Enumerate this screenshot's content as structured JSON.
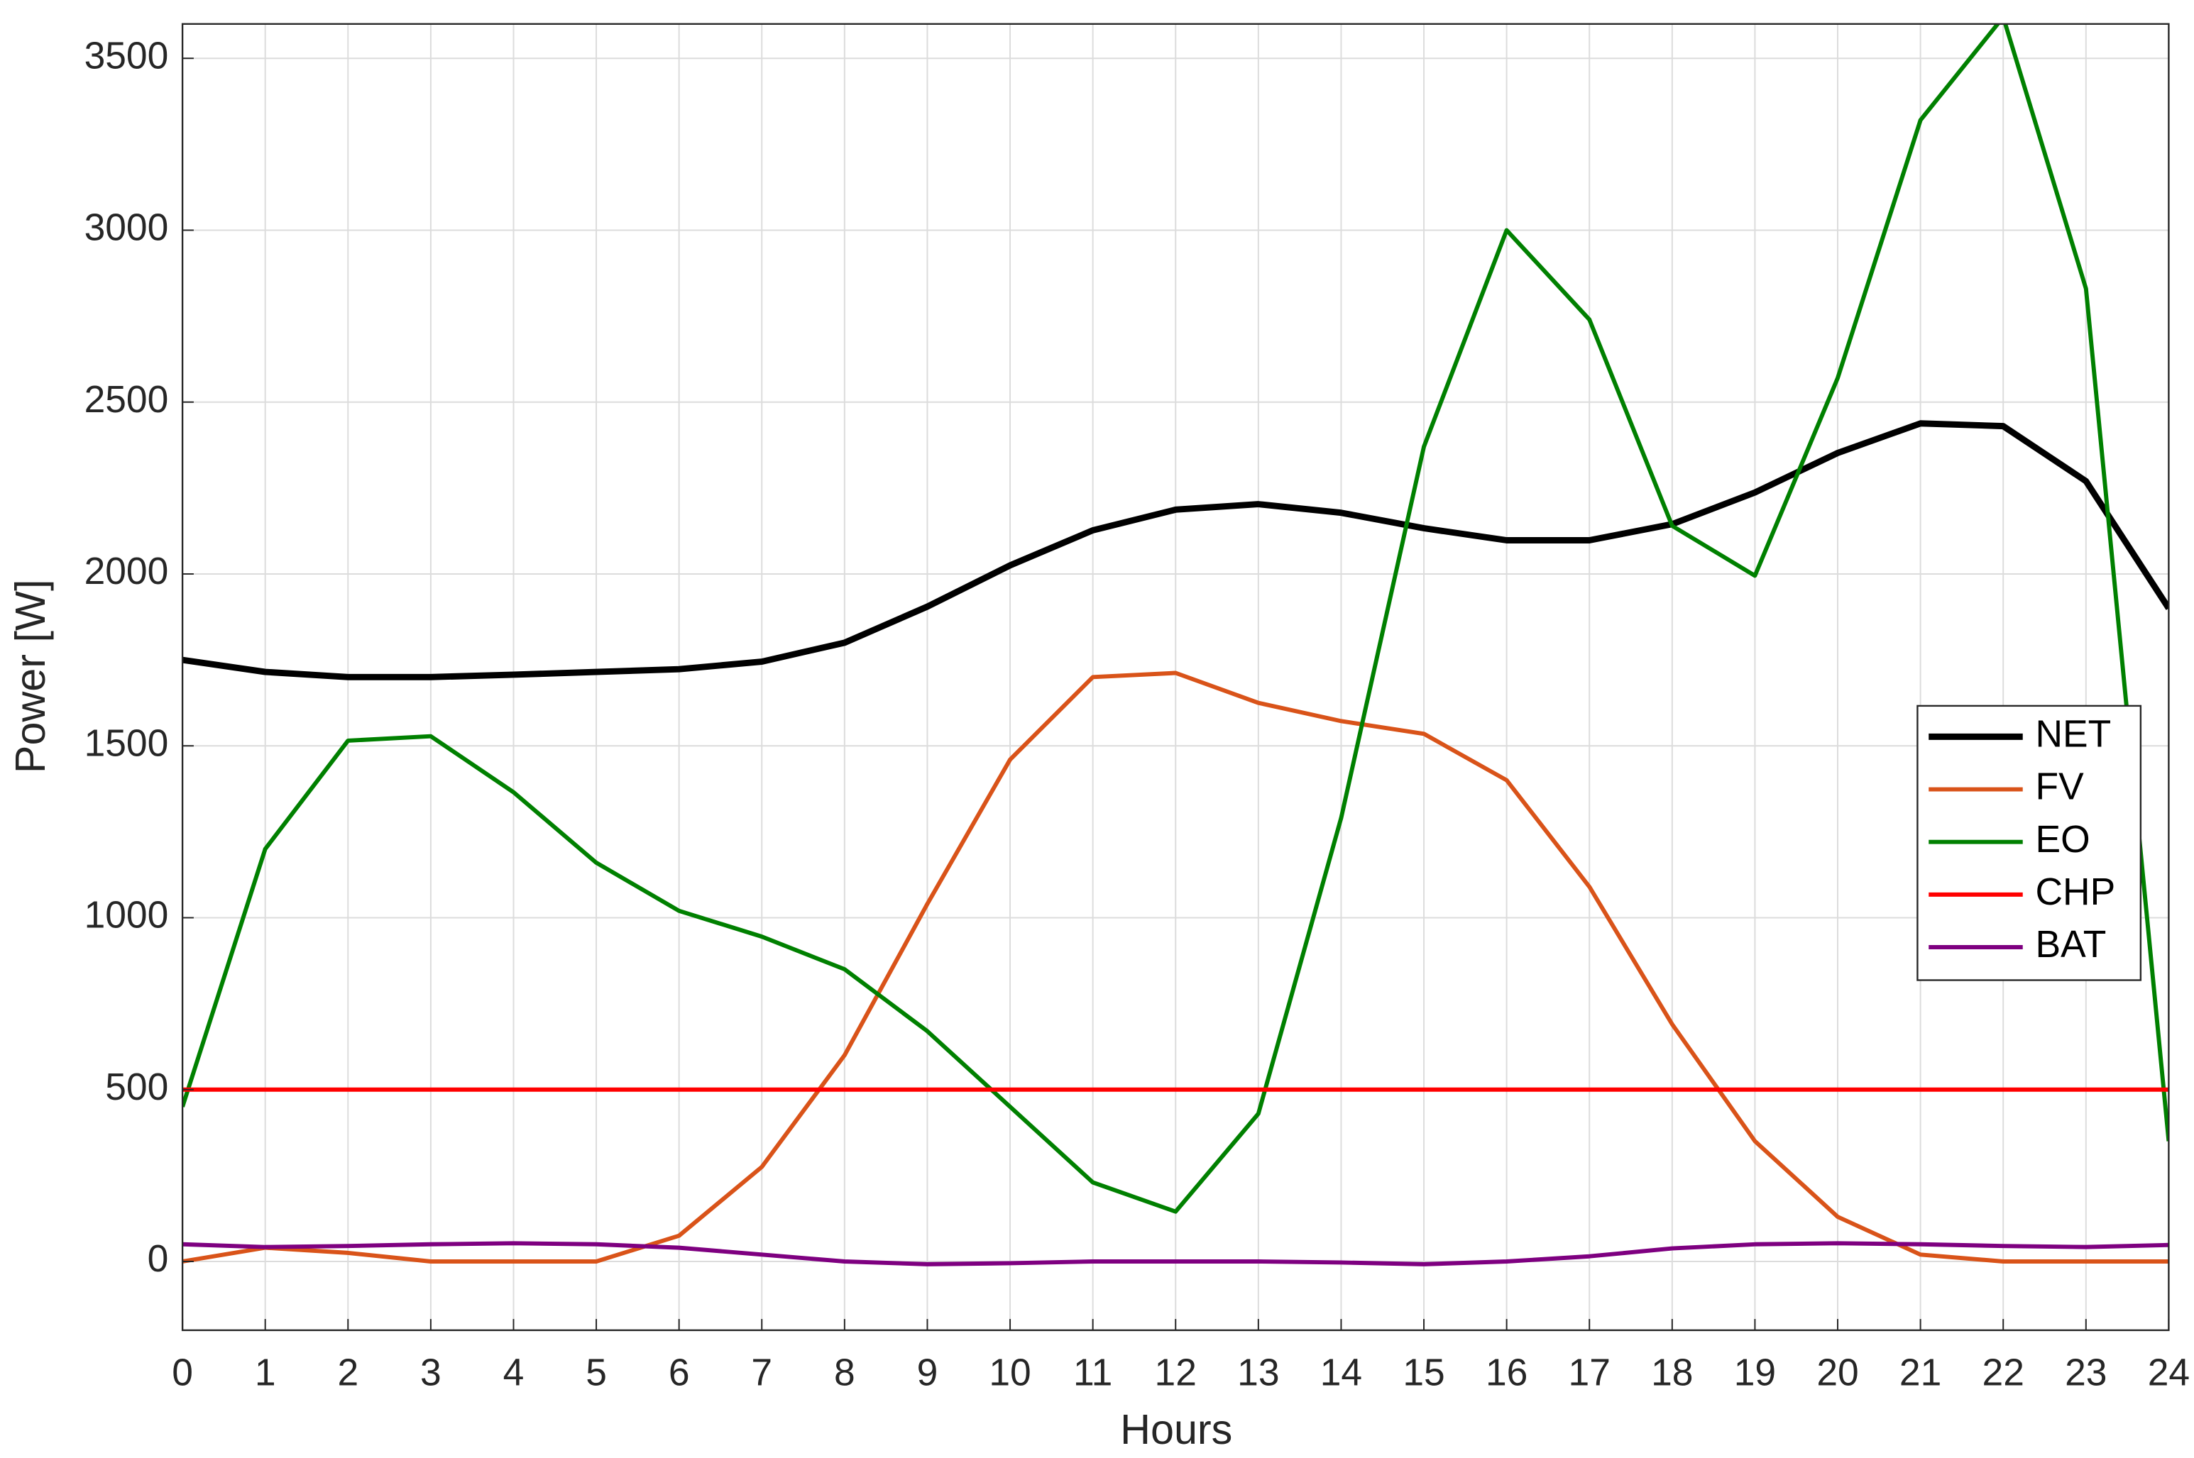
{
  "chart_data": {
    "type": "line",
    "xlabel": "Hours",
    "ylabel": "Power [W]",
    "x": [
      0,
      1,
      2,
      3,
      4,
      5,
      6,
      7,
      8,
      9,
      10,
      11,
      12,
      13,
      14,
      15,
      16,
      17,
      18,
      19,
      20,
      21,
      22,
      23,
      24
    ],
    "xlim": [
      0,
      24
    ],
    "xticks": [
      0,
      1,
      2,
      3,
      4,
      5,
      6,
      7,
      8,
      9,
      10,
      11,
      12,
      13,
      14,
      15,
      16,
      17,
      18,
      19,
      20,
      21,
      22,
      23,
      24
    ],
    "ylim": [
      -200,
      3600
    ],
    "yticks": [
      0,
      500,
      1000,
      1500,
      2000,
      2500,
      3000,
      3500
    ],
    "grid": true,
    "legend": "right",
    "series": [
      {
        "name": "NET",
        "color": "#000000",
        "values": [
          1750,
          1715,
          1700,
          1700,
          1707,
          1715,
          1723,
          1745,
          1800,
          1905,
          2025,
          2127,
          2187,
          2203,
          2178,
          2133,
          2098,
          2098,
          2145,
          2237,
          2352,
          2438,
          2430,
          2270,
          1900
        ]
      },
      {
        "name": "FV",
        "color": "#d95319",
        "values": [
          0,
          40,
          25,
          0,
          0,
          0,
          75,
          275,
          600,
          1040,
          1460,
          1700,
          1712,
          1625,
          1572,
          1535,
          1400,
          1090,
          690,
          350,
          130,
          20,
          0,
          0,
          0
        ]
      },
      {
        "name": "EO",
        "color": "#008000",
        "values": [
          450,
          1200,
          1515,
          1528,
          1365,
          1160,
          1020,
          945,
          850,
          670,
          450,
          230,
          145,
          430,
          1290,
          2370,
          3000,
          2740,
          2140,
          1995,
          2570,
          3320,
          3620,
          2830,
          350
        ]
      },
      {
        "name": "CHP",
        "color": "#ff0000",
        "values": [
          500,
          500,
          500,
          500,
          500,
          500,
          500,
          500,
          500,
          500,
          500,
          500,
          500,
          500,
          500,
          500,
          500,
          500,
          500,
          500,
          500,
          500,
          500,
          500,
          500
        ]
      },
      {
        "name": "BAT",
        "color": "#7e0080",
        "values": [
          50,
          42,
          45,
          50,
          53,
          50,
          40,
          20,
          0,
          -8,
          -5,
          0,
          0,
          0,
          -3,
          -8,
          0,
          15,
          38,
          50,
          53,
          50,
          45,
          42,
          48
        ]
      }
    ]
  }
}
